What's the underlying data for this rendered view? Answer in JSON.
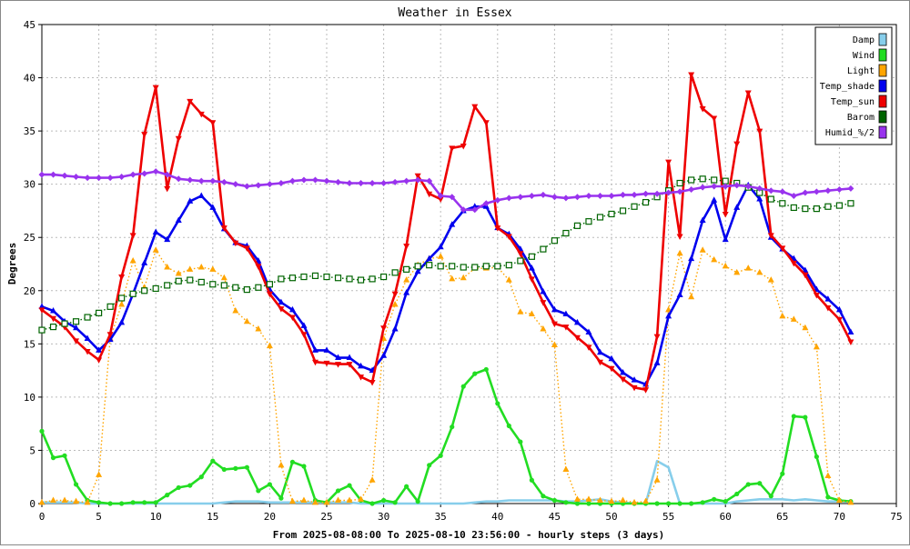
{
  "chart_data": {
    "type": "line",
    "title": "Weather in Essex",
    "xlabel": "From 2025-08-08:00 To 2025-08-10 23:56:00 - hourly steps (3 days)",
    "ylabel": "Degrees",
    "xlim": [
      0,
      75
    ],
    "ylim": [
      0,
      45
    ],
    "xticks": [
      0,
      5,
      10,
      15,
      20,
      25,
      30,
      35,
      40,
      45,
      50,
      55,
      60,
      65,
      70,
      75
    ],
    "yticks": [
      0,
      5,
      10,
      15,
      20,
      25,
      30,
      35,
      40,
      45
    ],
    "grid": true,
    "legend_position": "top-right",
    "x": [
      0,
      1,
      2,
      3,
      4,
      5,
      6,
      7,
      8,
      9,
      10,
      11,
      12,
      13,
      14,
      15,
      16,
      17,
      18,
      19,
      20,
      21,
      22,
      23,
      24,
      25,
      26,
      27,
      28,
      29,
      30,
      31,
      32,
      33,
      34,
      35,
      36,
      37,
      38,
      39,
      40,
      41,
      42,
      43,
      44,
      45,
      46,
      47,
      48,
      49,
      50,
      51,
      52,
      53,
      54,
      55,
      56,
      57,
      58,
      59,
      60,
      61,
      62,
      63,
      64,
      65,
      66,
      67,
      68,
      69,
      70,
      71
    ],
    "series": [
      {
        "name": "Damp",
        "color": "#87ceeb",
        "marker": "none",
        "line": "solid",
        "values": [
          0.1,
          0.1,
          0.1,
          0.1,
          0,
          0,
          0,
          0,
          0,
          0,
          0,
          0,
          0,
          0,
          0,
          0,
          0.1,
          0.2,
          0.2,
          0.2,
          0.1,
          0.1,
          0.1,
          0.1,
          0.1,
          0.1,
          0.1,
          0.1,
          0,
          0,
          0,
          0,
          0,
          0,
          0,
          0,
          0,
          0,
          0.1,
          0.2,
          0.2,
          0.3,
          0.3,
          0.3,
          0.3,
          0.3,
          0.2,
          0.2,
          0.3,
          0.4,
          0.2,
          0.1,
          0,
          0,
          4,
          3.4,
          0,
          0,
          0,
          0,
          0,
          0.2,
          0.3,
          0.4,
          0.4,
          0.4,
          0.3,
          0.4,
          0.3,
          0.2,
          0.2,
          0.2
        ]
      },
      {
        "name": "Wind",
        "color": "#22dd22",
        "marker": "dot",
        "line": "solid",
        "values": [
          6.8,
          4.3,
          4.5,
          1.8,
          0.3,
          0.1,
          0,
          0,
          0.1,
          0.1,
          0.1,
          0.8,
          1.5,
          1.7,
          2.5,
          4,
          3.2,
          3.3,
          3.4,
          1.2,
          1.8,
          0.5,
          3.9,
          3.5,
          0.3,
          0.1,
          1.2,
          1.7,
          0.3,
          0,
          0.3,
          0.1,
          1.6,
          0.2,
          3.6,
          4.5,
          7.2,
          11,
          12.2,
          12.6,
          9.4,
          7.3,
          5.8,
          2.2,
          0.7,
          0.3,
          0.1,
          0,
          0,
          0,
          0,
          0,
          0,
          0,
          0,
          0,
          0,
          0,
          0.1,
          0.4,
          0.2,
          0.9,
          1.8,
          1.9,
          0.7,
          2.8,
          8.2,
          8.1,
          4.4,
          0.6,
          0.3,
          0.2
        ]
      },
      {
        "name": "Light",
        "color": "#ffa500",
        "marker": "triangle",
        "line": "dotted",
        "values": [
          0.1,
          0.3,
          0.3,
          0.2,
          0.1,
          2.7,
          15.5,
          18.7,
          22.8,
          20.3,
          23.8,
          22.2,
          21.6,
          22,
          22.2,
          22,
          21.2,
          18.1,
          17.1,
          16.4,
          14.8,
          3.6,
          0.2,
          0.3,
          0.1,
          0.1,
          0.3,
          0.3,
          0.4,
          2.2,
          15.5,
          18.7,
          21,
          22.4,
          23,
          23.2,
          21.1,
          21.2,
          22.1,
          22.1,
          22.2,
          21,
          18,
          17.8,
          16.4,
          14.9,
          3.2,
          0.4,
          0.4,
          0.3,
          0.2,
          0.3,
          0.1,
          0.2,
          2.2,
          18.2,
          23.5,
          19.4,
          23.8,
          22.9,
          22.3,
          21.7,
          22.1,
          21.7,
          21,
          17.6,
          17.3,
          16.5,
          14.7,
          2.6,
          0.3,
          0.1
        ]
      },
      {
        "name": "Temp_shade",
        "color": "#0000ee",
        "marker": "triangle",
        "line": "solid",
        "values": [
          18.5,
          18.1,
          17.1,
          16.5,
          15.5,
          14.4,
          15.4,
          17,
          19.7,
          22.6,
          25.5,
          24.8,
          26.6,
          28.4,
          28.9,
          27.8,
          25.8,
          24.5,
          24.2,
          22.8,
          20.1,
          18.9,
          18.2,
          16.7,
          14.4,
          14.4,
          13.7,
          13.7,
          12.9,
          12.5,
          13.9,
          16.4,
          19.8,
          21.8,
          23,
          24.1,
          26.2,
          27.5,
          27.9,
          27.9,
          25.9,
          25.3,
          23.9,
          22.1,
          19.9,
          18.2,
          17.8,
          17,
          16.1,
          14.2,
          13.6,
          12.3,
          11.6,
          11.2,
          13.2,
          17.6,
          19.6,
          23,
          26.6,
          28.5,
          24.8,
          27.8,
          29.9,
          28.6,
          25,
          23.9,
          23,
          21.9,
          20.1,
          19.2,
          18.2,
          16.1
        ]
      },
      {
        "name": "Temp_sun",
        "color": "#ee0000",
        "marker": "triangle-down",
        "line": "solid",
        "values": [
          18.2,
          17.4,
          16.6,
          15.3,
          14.3,
          13.5,
          15.9,
          21.3,
          25.2,
          34.7,
          39.1,
          29.6,
          34.3,
          37.8,
          36.6,
          35.8,
          25.9,
          24.5,
          24,
          22.3,
          19.7,
          18.3,
          17.5,
          15.9,
          13.3,
          13.2,
          13.1,
          13.1,
          11.9,
          11.4,
          16.5,
          19.7,
          24.2,
          30.8,
          29.1,
          28.6,
          33.4,
          33.6,
          37.3,
          35.8,
          25.9,
          25.1,
          23.5,
          21.1,
          18.9,
          16.9,
          16.6,
          15.6,
          14.7,
          13.3,
          12.7,
          11.7,
          10.9,
          10.7,
          15.7,
          32.1,
          25.1,
          40.3,
          37.1,
          36.2,
          27.2,
          33.8,
          38.6,
          35,
          25.2,
          24,
          22.6,
          21.5,
          19.6,
          18.4,
          17.3,
          15.2
        ]
      },
      {
        "name": "Barom",
        "color": "#006400",
        "marker": "square",
        "line": "dotted",
        "values": [
          16.3,
          16.6,
          16.9,
          17.1,
          17.5,
          17.9,
          18.5,
          19.3,
          19.7,
          20,
          20.2,
          20.5,
          20.9,
          21,
          20.8,
          20.6,
          20.5,
          20.3,
          20.1,
          20.3,
          20.6,
          21.1,
          21.2,
          21.3,
          21.4,
          21.3,
          21.2,
          21.1,
          21,
          21.1,
          21.3,
          21.7,
          22,
          22.3,
          22.4,
          22.3,
          22.3,
          22.2,
          22.2,
          22.3,
          22.3,
          22.4,
          22.8,
          23.2,
          23.9,
          24.7,
          25.4,
          26.1,
          26.5,
          26.9,
          27.2,
          27.5,
          27.9,
          28.3,
          28.8,
          29.4,
          30.1,
          30.4,
          30.5,
          30.4,
          30.3,
          30.1,
          29.7,
          29.2,
          28.6,
          28.2,
          27.8,
          27.7,
          27.7,
          27.9,
          28,
          28.2
        ]
      },
      {
        "name": "Humid_%/2",
        "color": "#9933ee",
        "marker": "diamond",
        "line": "solid",
        "values": [
          30.9,
          30.9,
          30.8,
          30.7,
          30.6,
          30.6,
          30.6,
          30.7,
          30.9,
          31,
          31.2,
          30.9,
          30.5,
          30.4,
          30.3,
          30.3,
          30.2,
          30,
          29.8,
          29.9,
          30,
          30.1,
          30.3,
          30.4,
          30.4,
          30.3,
          30.2,
          30.1,
          30.1,
          30.1,
          30.1,
          30.2,
          30.3,
          30.4,
          30.3,
          28.9,
          28.8,
          27.6,
          27.6,
          28.2,
          28.5,
          28.7,
          28.8,
          28.9,
          29,
          28.8,
          28.7,
          28.8,
          28.9,
          28.9,
          28.9,
          29,
          29,
          29.1,
          29.1,
          29.2,
          29.3,
          29.5,
          29.7,
          29.8,
          29.8,
          29.9,
          29.8,
          29.6,
          29.4,
          29.3,
          28.9,
          29.2,
          29.3,
          29.4,
          29.5,
          29.6
        ]
      }
    ]
  }
}
